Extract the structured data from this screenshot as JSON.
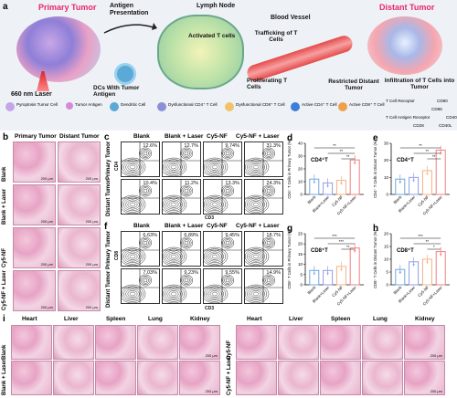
{
  "panel_a": {
    "label": "a",
    "primary_tumor": "Primary Tumor",
    "antigen_presentation": "Antigen Presentation",
    "lymph_node": "Lymph Node",
    "blood_vessel": "Blood Vessel",
    "distant_tumor": "Distant Tumor",
    "activated_t_cells": "Activated T cells",
    "trafficking": "Trafficking of T Cells",
    "laser": "660 nm Laser",
    "dcs": "DCs With Tumor Antigen",
    "proliferating": "Proliferating T Cells",
    "restricted": "Restricted Distant Tumor",
    "infiltration": "Infiltration of T Cells into Tumor",
    "legend": [
      "Pyroptosis Tumor Cell",
      "Tumor Antigen",
      "Dendritic Cell",
      "Dysfunctional CD4⁺ T Cell",
      "Dysfunctional CD8⁺ T Cell",
      "Active CD4⁺ T Cell",
      "Active CD8⁺ T Cell",
      "T Cell Receptor",
      "T Cell Antigen Receptor",
      "CD80",
      "CD86",
      "CD28",
      "CD40",
      "CD40L"
    ],
    "colors": {
      "primary": "#e8266e",
      "distant": "#e8266e",
      "banner": "#eef2f7"
    }
  },
  "panel_b": {
    "label": "b",
    "col_headers": [
      "Primary Tumor",
      "Distant Tumor"
    ],
    "row_labels": [
      "Blank",
      "Blank + Laser",
      "Cy5-NF",
      "Cy5-NF + Laser"
    ],
    "scale": "200 μm"
  },
  "panel_c": {
    "label": "c",
    "col_headers": [
      "Blank",
      "Blank + Laser",
      "Cy5-NF",
      "Cy5-NF + Laser"
    ],
    "row_labels": [
      "Primary Tumor",
      "Distant Tumor"
    ],
    "y_axis": "CD4",
    "x_axis": "CD3",
    "percentages": [
      [
        "12.6%",
        "12.7%",
        "9.74%",
        "31.3%"
      ],
      [
        "10.4%",
        "11.2%",
        "13.3%",
        "24.3%"
      ]
    ]
  },
  "panel_f": {
    "label": "f",
    "col_headers": [
      "Blank",
      "Blank + Laser",
      "Cy5-NF",
      "Cy5-NF + Laser"
    ],
    "row_labels": [
      "Primary Tumor",
      "Distant Tumor"
    ],
    "y_axis": "CD8",
    "x_axis": "CD3",
    "percentages": [
      [
        "6.63%",
        "6.89%",
        "9.45%",
        "18.7%"
      ],
      [
        "7.03%",
        "9.23%",
        "9.55%",
        "14.9%"
      ]
    ]
  },
  "chart_data": [
    {
      "panel": "d",
      "type": "bar",
      "title": "CD4⁺T",
      "ylabel": "CD4⁺ T Cells in Primary Tumor (%)",
      "categories": [
        "Blank",
        "Blank+Laser",
        "Cy5-NF",
        "Cy5-NF+Laser"
      ],
      "values": [
        12,
        9,
        11,
        27
      ],
      "ylim": [
        0,
        40
      ],
      "yticks": [
        "0",
        "10",
        "20",
        "30",
        "40"
      ],
      "significance": [
        "**",
        "**",
        "**"
      ]
    },
    {
      "panel": "e",
      "type": "bar",
      "title": "CD4⁺T",
      "ylabel": "CD4⁺ T Cells in Distant Tumor (%)",
      "categories": [
        "Blank",
        "Blank+Laser",
        "Cy5-NF",
        "Cy5-NF+Laser"
      ],
      "values": [
        9,
        10,
        14,
        26
      ],
      "ylim": [
        0,
        30
      ],
      "yticks": [
        "0",
        "10",
        "20",
        "30"
      ],
      "significance": [
        "**",
        "**",
        "**"
      ]
    },
    {
      "panel": "g",
      "type": "bar",
      "title": "CD8⁺T",
      "ylabel": "CD8⁺ T Cells in Primary Tumor (%)",
      "categories": [
        "Blank",
        "Blank+Laser",
        "Cy5-NF",
        "Cy5-NF+Laser"
      ],
      "values": [
        7,
        7,
        9,
        18
      ],
      "ylim": [
        0,
        25
      ],
      "yticks": [
        "0",
        "5",
        "10",
        "15",
        "20",
        "25"
      ],
      "significance": [
        "***",
        "***",
        "**"
      ]
    },
    {
      "panel": "h",
      "type": "bar",
      "title": "CD8⁺T",
      "ylabel": "CD8⁺ T Cells in Distant Tumor (%)",
      "categories": [
        "Blank",
        "Blank+Laser",
        "Cy5-NF",
        "Cy5-NF+Laser"
      ],
      "values": [
        6,
        9,
        10,
        13
      ],
      "ylim": [
        0,
        20
      ],
      "yticks": [
        "0",
        "5",
        "10",
        "15",
        "20"
      ],
      "significance": [
        "***",
        "**",
        "*"
      ]
    }
  ],
  "bar_colors": [
    "#6fa8dc",
    "#8e9ee8",
    "#f4b183",
    "#f08080"
  ],
  "panel_i": {
    "label": "i",
    "organs": [
      "Heart",
      "Liver",
      "Spleen",
      "Lung",
      "Kidney"
    ],
    "left_rows": [
      "Blank",
      "Blank + Laser"
    ],
    "right_rows": [
      "Cy5-NF",
      "Cy5-NF + Laser"
    ],
    "scale": "200 μm"
  }
}
